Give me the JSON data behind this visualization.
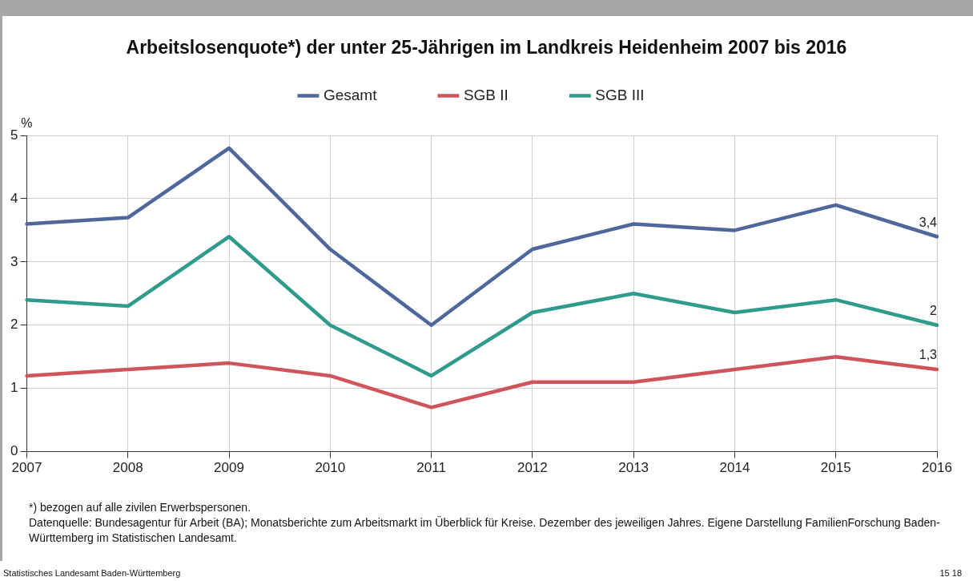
{
  "chart_data": {
    "type": "line",
    "title": "Arbeitslosenquote*) der unter 25-Jährigen im Landkreis Heidenheim 2007 bis 2016",
    "ylabel": "%",
    "categories": [
      "2007",
      "2008",
      "2009",
      "2010",
      "2011",
      "2012",
      "2013",
      "2014",
      "2015",
      "2016"
    ],
    "series": [
      {
        "name": "Gesamt",
        "color": "#4f679b",
        "values": [
          3.6,
          3.7,
          4.8,
          3.2,
          2.0,
          3.2,
          3.6,
          3.5,
          3.9,
          3.4
        ],
        "value_labels": [
          null,
          null,
          null,
          null,
          null,
          null,
          null,
          null,
          null,
          "3,4"
        ]
      },
      {
        "name": "SGB II",
        "color": "#cf545b",
        "values": [
          1.2,
          1.3,
          1.4,
          1.2,
          0.7,
          1.1,
          1.1,
          1.3,
          1.5,
          1.3
        ],
        "value_labels": [
          null,
          null,
          null,
          null,
          null,
          null,
          null,
          null,
          null,
          "1,3"
        ]
      },
      {
        "name": "SGB III",
        "color": "#2f9b8c",
        "values": [
          2.4,
          2.3,
          3.4,
          2.0,
          1.2,
          2.2,
          2.5,
          2.2,
          2.4,
          2.0
        ],
        "value_labels": [
          null,
          null,
          null,
          null,
          null,
          null,
          null,
          null,
          null,
          "2"
        ]
      }
    ],
    "ylim": [
      0,
      5
    ],
    "yticks": [
      0,
      1,
      2,
      3,
      4,
      5
    ],
    "grid": true,
    "legend": "top",
    "marker": "none",
    "line_style": "solid",
    "annotations": [
      "*) bezogen auf alle zivilen Erwerbspersonen.",
      "Datenquelle: Bundesagentur für Arbeit (BA); Monatsberichte zum Arbeitsmarkt im Überblick für Kreise. Dezember des jeweiligen Jahres. Eigene Darstellung FamilienForschung Baden-Württemberg im Statistischen Landesamt.",
      "Statistisches Landesamt Baden-Württemberg",
      "15 18"
    ]
  }
}
